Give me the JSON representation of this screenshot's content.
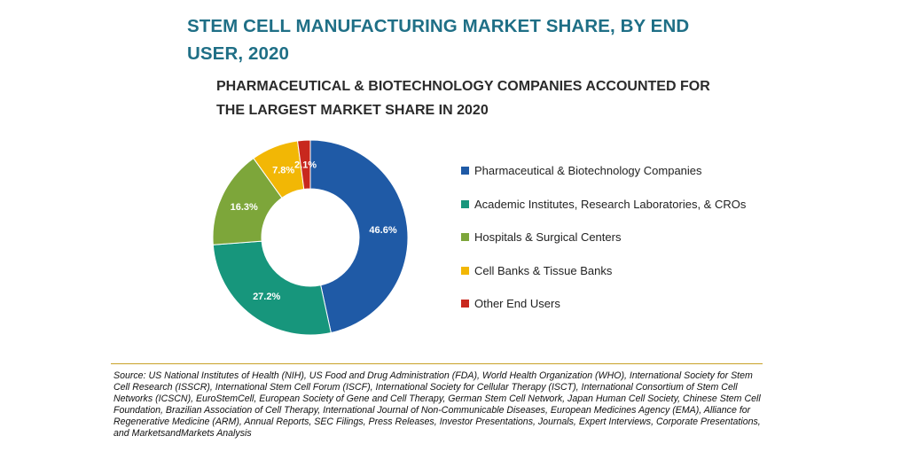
{
  "header": {
    "title": "STEM CELL MANUFACTURING MARKET SHARE, BY END USER, 2020",
    "subtitle": "PHARMACEUTICAL & BIOTECHNOLOGY COMPANIES ACCOUNTED FOR THE LARGEST MARKET SHARE IN 2020"
  },
  "chart_data": {
    "type": "pie",
    "style": "donut",
    "title": "STEM CELL MANUFACTURING MARKET SHARE, BY END USER, 2020",
    "subtitle": "PHARMACEUTICAL & BIOTECHNOLOGY COMPANIES ACCOUNTED FOR THE LARGEST MARKET SHARE IN 2020",
    "legend_position": "right",
    "slices": [
      {
        "label": "Pharmaceutical & Biotechnology Companies",
        "value": 46.6,
        "value_label": "46.6%",
        "color": "#1f5aa6"
      },
      {
        "label": "Academic Institutes, Research Laboratories, & CROs",
        "value": 27.2,
        "value_label": "27.2%",
        "color": "#17967c"
      },
      {
        "label": "Hospitals & Surgical Centers",
        "value": 16.3,
        "value_label": "16.3%",
        "color": "#7da63a"
      },
      {
        "label": "Cell Banks & Tissue Banks",
        "value": 7.8,
        "value_label": "7.8%",
        "color": "#f2b705"
      },
      {
        "label": "Other End Users",
        "value": 2.1,
        "value_label": "2.1%",
        "color": "#c8281e"
      }
    ]
  },
  "footer": {
    "source": "Source: US National Institutes of Health (NIH), US Food and Drug Administration (FDA), World Health Organization (WHO), International Society for Stem Cell Research (ISSCR), International Stem Cell Forum (ISCF), International Society for Cellular Therapy (ISCT), International Consortium of Stem Cell Networks (ICSCN), EuroStemCell, European Society of Gene and Cell Therapy, German Stem Cell Network, Japan Human Cell Society, Chinese Stem Cell Foundation, Brazilian Association of Cell Therapy, International Journal of Non-Communicable Diseases, European Medicines Agency (EMA), Alliance for Regenerative Medicine (ARM), Annual Reports, SEC Filings, Press Releases, Investor Presentations, Journals, Expert Interviews, Corporate Presentations, and MarketsandMarkets Analysis"
  }
}
